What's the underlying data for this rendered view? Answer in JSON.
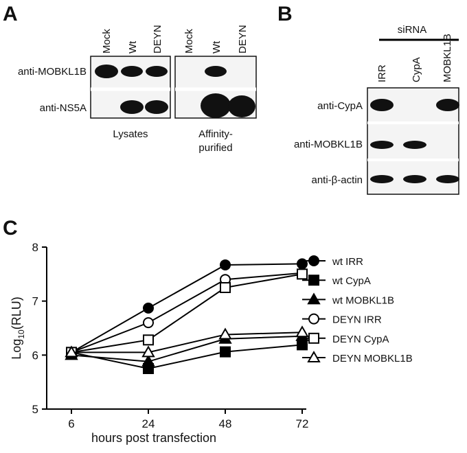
{
  "panel_a": {
    "label": "A",
    "lanes_1": [
      "Mock",
      "Wt",
      "DEYN"
    ],
    "lanes_2": [
      "Mock",
      "Wt",
      "DEYN"
    ],
    "rows": [
      "anti-MOBKL1B",
      "anti-NS5A"
    ],
    "caption_1": "Lysates",
    "caption_2": [
      "Affinity-",
      "purified"
    ]
  },
  "panel_b": {
    "label": "B",
    "group": "siRNA",
    "lanes": [
      "IRR",
      "CypA",
      "MOBKL1B"
    ],
    "rows": [
      "anti-CypA",
      "anti-MOBKL1B",
      "anti-β-actin"
    ]
  },
  "chart_data": {
    "type": "line",
    "label": "C",
    "xlabel": "hours post transfection",
    "ylabel": {
      "base": "Log",
      "sub": "10",
      "rest": "(RLU)"
    },
    "categories": [
      "6",
      "24",
      "48",
      "72"
    ],
    "ylim": [
      5,
      8
    ],
    "yticks": [
      5,
      6,
      7,
      8
    ],
    "series": [
      {
        "name": "wt IRR",
        "color": "#000000",
        "marker": "circle",
        "filled": true,
        "values": [
          6.05,
          6.87,
          7.67,
          7.69
        ]
      },
      {
        "name": "wt CypA",
        "color": "#000000",
        "marker": "square",
        "filled": true,
        "values": [
          6.05,
          5.75,
          6.06,
          6.19
        ]
      },
      {
        "name": "wt MOBKL1B",
        "color": "#000000",
        "marker": "triangle",
        "filled": true,
        "values": [
          6.0,
          5.88,
          6.3,
          6.35
        ]
      },
      {
        "name": "DEYN IRR",
        "color": "#000000",
        "marker": "circle",
        "filled": false,
        "values": [
          6.05,
          6.6,
          7.4,
          7.52
        ]
      },
      {
        "name": "DEYN CypA",
        "color": "#000000",
        "marker": "square",
        "filled": false,
        "values": [
          6.05,
          6.28,
          7.25,
          7.5
        ]
      },
      {
        "name": "DEYN MOBKL1B",
        "color": "#000000",
        "marker": "triangle",
        "filled": false,
        "values": [
          6.05,
          6.05,
          6.38,
          6.42
        ]
      }
    ]
  }
}
